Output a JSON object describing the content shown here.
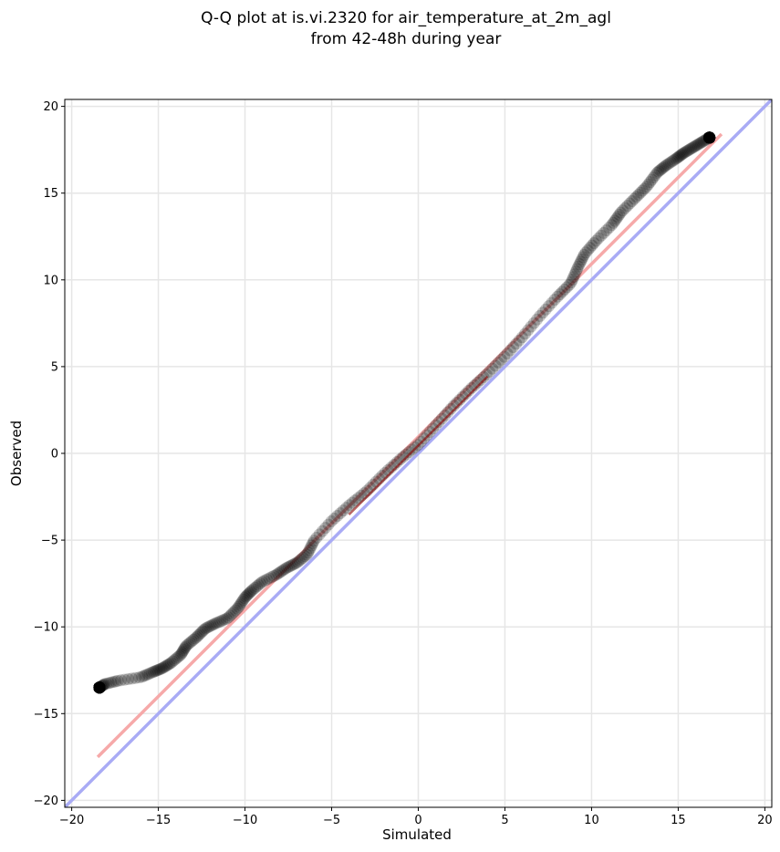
{
  "chart_data": {
    "type": "scatter",
    "title": [
      "Q-Q plot at is.vi.2320 for air_temperature_at_2m_agl",
      "from 42-48h during year"
    ],
    "xlabel": "Simulated",
    "ylabel": "Observed",
    "xlim": [
      -20.4,
      20.4
    ],
    "ylim": [
      -20.4,
      20.4
    ],
    "xticks": [
      -20,
      -15,
      -10,
      -5,
      0,
      5,
      10,
      15,
      20
    ],
    "yticks": [
      -20,
      -15,
      -10,
      -5,
      0,
      5,
      10,
      15,
      20
    ],
    "xtick_labels": [
      "−20",
      "−15",
      "−10",
      "−5",
      "0",
      "5",
      "10",
      "15",
      "20"
    ],
    "ytick_labels": [
      "−20",
      "−15",
      "−10",
      "−5",
      "0",
      "5",
      "10",
      "15",
      "20"
    ],
    "grid": true,
    "colors": {
      "points": "#000000",
      "identity_line": "#a9abf5",
      "fit_line": "#f6a9a9",
      "fit_center": "#8b0000"
    },
    "identity_line": {
      "x": [
        -20.4,
        20.4
      ],
      "y": [
        -20.4,
        20.4
      ]
    },
    "fit_line": {
      "x": [
        -18.5,
        17.5
      ],
      "y": [
        -17.5,
        18.4
      ]
    },
    "quantile_curve": {
      "x": [
        -18.4,
        -18.1,
        -17.3,
        -16.0,
        -15.3,
        -14.8,
        -14.3,
        -13.7,
        -13.4,
        -12.8,
        -12.3,
        -11.7,
        -11.0,
        -10.4,
        -10.0,
        -9.6,
        -9.0,
        -8.2,
        -7.6,
        -7.0,
        -6.4,
        -6.0,
        -5.0,
        -4.0,
        -3.0,
        -2.0,
        -1.0,
        0.0,
        1.0,
        2.0,
        3.0,
        4.0,
        5.0,
        6.0,
        7.0,
        8.0,
        8.8,
        9.2,
        9.6,
        10.3,
        11.2,
        11.7,
        12.5,
        13.2,
        13.8,
        14.3,
        14.9,
        15.3,
        15.8,
        16.3,
        16.8
      ],
      "y": [
        -13.5,
        -13.3,
        -13.1,
        -12.9,
        -12.6,
        -12.4,
        -12.1,
        -11.6,
        -11.1,
        -10.6,
        -10.1,
        -9.8,
        -9.5,
        -8.9,
        -8.3,
        -7.9,
        -7.4,
        -7.0,
        -6.6,
        -6.3,
        -5.8,
        -5.0,
        -3.9,
        -3.0,
        -2.2,
        -1.2,
        -0.3,
        0.5,
        1.6,
        2.7,
        3.7,
        4.6,
        5.6,
        6.7,
        7.9,
        9.0,
        9.8,
        10.7,
        11.5,
        12.3,
        13.2,
        13.9,
        14.7,
        15.4,
        16.2,
        16.6,
        17.0,
        17.3,
        17.6,
        17.9,
        18.2
      ]
    }
  }
}
